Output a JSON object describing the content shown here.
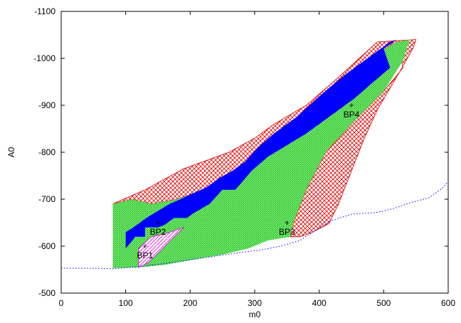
{
  "chart_data": {
    "type": "area",
    "title": "",
    "xlabel": "m0",
    "ylabel": "A0",
    "xlim": [
      0,
      600
    ],
    "ylim": [
      -500,
      -1100
    ],
    "y_axis_inverted": true,
    "grid": false,
    "x_ticks": [
      "0",
      "100",
      "200",
      "300",
      "400",
      "500",
      "600"
    ],
    "y_ticks": [
      "-500",
      "-600",
      "-700",
      "-800",
      "-900",
      "-1000",
      "-1100"
    ],
    "series": [
      {
        "style": "red-crosshatch",
        "color": "#e00000",
        "points": [
          [
            80,
            -690
          ],
          [
            130,
            -720
          ],
          [
            190,
            -765
          ],
          [
            260,
            -800
          ],
          [
            300,
            -830
          ],
          [
            330,
            -860
          ],
          [
            380,
            -900
          ],
          [
            430,
            -960
          ],
          [
            490,
            -1035
          ],
          [
            550,
            -1040
          ],
          [
            545,
            -1020
          ],
          [
            520,
            -960
          ],
          [
            490,
            -890
          ],
          [
            470,
            -830
          ],
          [
            450,
            -760
          ],
          [
            430,
            -690
          ],
          [
            415,
            -648
          ],
          [
            390,
            -630
          ],
          [
            370,
            -620
          ],
          [
            355,
            -620
          ],
          [
            360,
            -650
          ],
          [
            380,
            -720
          ],
          [
            410,
            -800
          ],
          [
            450,
            -860
          ],
          [
            500,
            -930
          ],
          [
            530,
            -980
          ],
          [
            520,
            -1035
          ],
          [
            490,
            -1010
          ],
          [
            440,
            -960
          ],
          [
            380,
            -890
          ],
          [
            330,
            -820
          ],
          [
            290,
            -770
          ],
          [
            240,
            -730
          ],
          [
            180,
            -700
          ],
          [
            140,
            -690
          ],
          [
            110,
            -700
          ],
          [
            80,
            -690
          ]
        ]
      },
      {
        "style": "green-mesh",
        "color": "#00cc00",
        "points": [
          [
            80,
            -690
          ],
          [
            110,
            -700
          ],
          [
            140,
            -690
          ],
          [
            180,
            -700
          ],
          [
            240,
            -730
          ],
          [
            290,
            -770
          ],
          [
            330,
            -820
          ],
          [
            380,
            -890
          ],
          [
            440,
            -960
          ],
          [
            490,
            -1010
          ],
          [
            520,
            -1035
          ],
          [
            540,
            -1040
          ],
          [
            530,
            -995
          ],
          [
            500,
            -930
          ],
          [
            450,
            -860
          ],
          [
            410,
            -800
          ],
          [
            380,
            -720
          ],
          [
            360,
            -650
          ],
          [
            355,
            -620
          ],
          [
            320,
            -612
          ],
          [
            290,
            -595
          ],
          [
            250,
            -582
          ],
          [
            200,
            -570
          ],
          [
            160,
            -560
          ],
          [
            120,
            -555
          ],
          [
            80,
            -553
          ],
          [
            80,
            -690
          ]
        ]
      },
      {
        "style": "blue-solid",
        "color": "#0000ff",
        "points": [
          [
            100,
            -555
          ],
          [
            100,
            -595
          ],
          [
            115,
            -620
          ],
          [
            130,
            -620
          ],
          [
            130,
            -640
          ],
          [
            150,
            -640
          ],
          [
            160,
            -645
          ],
          [
            175,
            -660
          ],
          [
            195,
            -660
          ],
          [
            205,
            -670
          ],
          [
            230,
            -690
          ],
          [
            250,
            -720
          ],
          [
            270,
            -720
          ],
          [
            295,
            -760
          ],
          [
            320,
            -790
          ],
          [
            350,
            -815
          ],
          [
            380,
            -840
          ],
          [
            420,
            -880
          ],
          [
            455,
            -915
          ],
          [
            480,
            -945
          ],
          [
            510,
            -980
          ],
          [
            500,
            -1020
          ],
          [
            520,
            -1040
          ],
          [
            510,
            -1035
          ],
          [
            470,
            -995
          ],
          [
            440,
            -965
          ],
          [
            405,
            -925
          ],
          [
            365,
            -875
          ],
          [
            330,
            -840
          ],
          [
            305,
            -810
          ],
          [
            285,
            -780
          ],
          [
            265,
            -760
          ],
          [
            245,
            -745
          ],
          [
            225,
            -725
          ],
          [
            200,
            -710
          ],
          [
            185,
            -700
          ],
          [
            168,
            -690
          ],
          [
            150,
            -675
          ],
          [
            132,
            -660
          ],
          [
            112,
            -640
          ],
          [
            100,
            -630
          ],
          [
            100,
            -555
          ]
        ]
      },
      {
        "style": "magenta-hatch",
        "color": "#e000e0",
        "points": [
          [
            120,
            -555
          ],
          [
            120,
            -595
          ],
          [
            140,
            -620
          ],
          [
            165,
            -628
          ],
          [
            190,
            -640
          ],
          [
            168,
            -610
          ],
          [
            150,
            -585
          ],
          [
            135,
            -565
          ],
          [
            120,
            -555
          ]
        ]
      },
      {
        "style": "blue-dotted",
        "color": "#0000ff",
        "points": [
          [
            0,
            -553
          ],
          [
            40,
            -553
          ],
          [
            80,
            -552
          ],
          [
            120,
            -556
          ],
          [
            170,
            -565
          ],
          [
            220,
            -575
          ],
          [
            270,
            -585
          ],
          [
            310,
            -592
          ],
          [
            340,
            -600
          ],
          [
            370,
            -612
          ],
          [
            390,
            -630
          ],
          [
            420,
            -655
          ],
          [
            450,
            -668
          ],
          [
            470,
            -670
          ],
          [
            490,
            -672
          ],
          [
            515,
            -680
          ],
          [
            540,
            -692
          ],
          [
            570,
            -703
          ],
          [
            590,
            -722
          ],
          [
            600,
            -738
          ]
        ]
      }
    ],
    "points": [
      {
        "label": "BP1",
        "x": 130,
        "y": -600
      },
      {
        "label": "BP2",
        "x": 150,
        "y": -650
      },
      {
        "label": "BP3",
        "x": 350,
        "y": -650
      },
      {
        "label": "BP4",
        "x": 450,
        "y": -900
      }
    ]
  }
}
